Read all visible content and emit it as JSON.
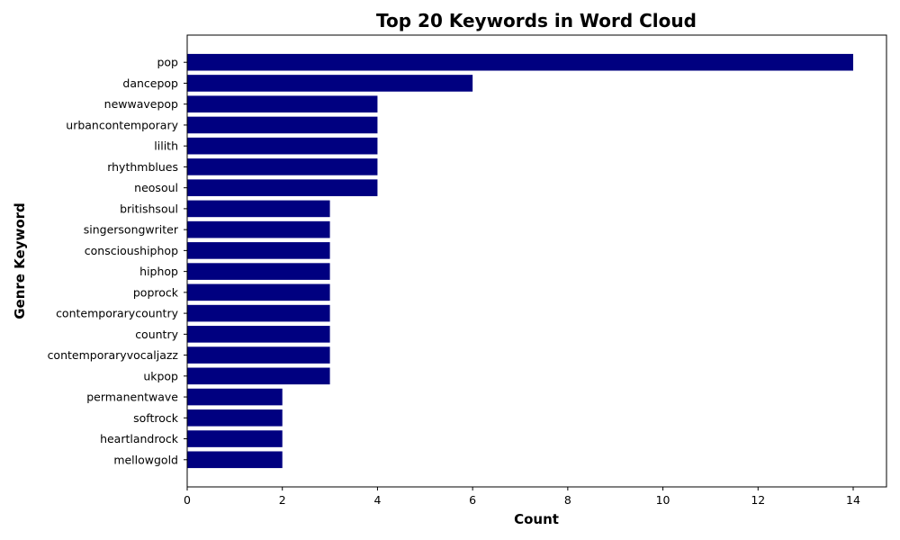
{
  "chart_data": {
    "type": "bar",
    "orientation": "horizontal",
    "title": "Top 20 Keywords in Word Cloud",
    "xlabel": "Count",
    "ylabel": "Genre Keyword",
    "xlim": [
      0,
      14.7
    ],
    "x_ticks": [
      0,
      2,
      4,
      6,
      8,
      10,
      12,
      14
    ],
    "categories": [
      "pop",
      "dancepop",
      "newwavepop",
      "urbancontemporary",
      "lilith",
      "rhythmblues",
      "neosoul",
      "britishsoul",
      "singersongwriter",
      "conscioushiphop",
      "hiphop",
      "poprock",
      "contemporarycountry",
      "country",
      "contemporaryvocaljazz",
      "ukpop",
      "permanentwave",
      "softrock",
      "heartlandrock",
      "mellowgold"
    ],
    "values": [
      14,
      6,
      4,
      4,
      4,
      4,
      4,
      3,
      3,
      3,
      3,
      3,
      3,
      3,
      3,
      3,
      2,
      2,
      2,
      2
    ],
    "bar_color": "#000080",
    "grid": false,
    "legend": "none"
  }
}
